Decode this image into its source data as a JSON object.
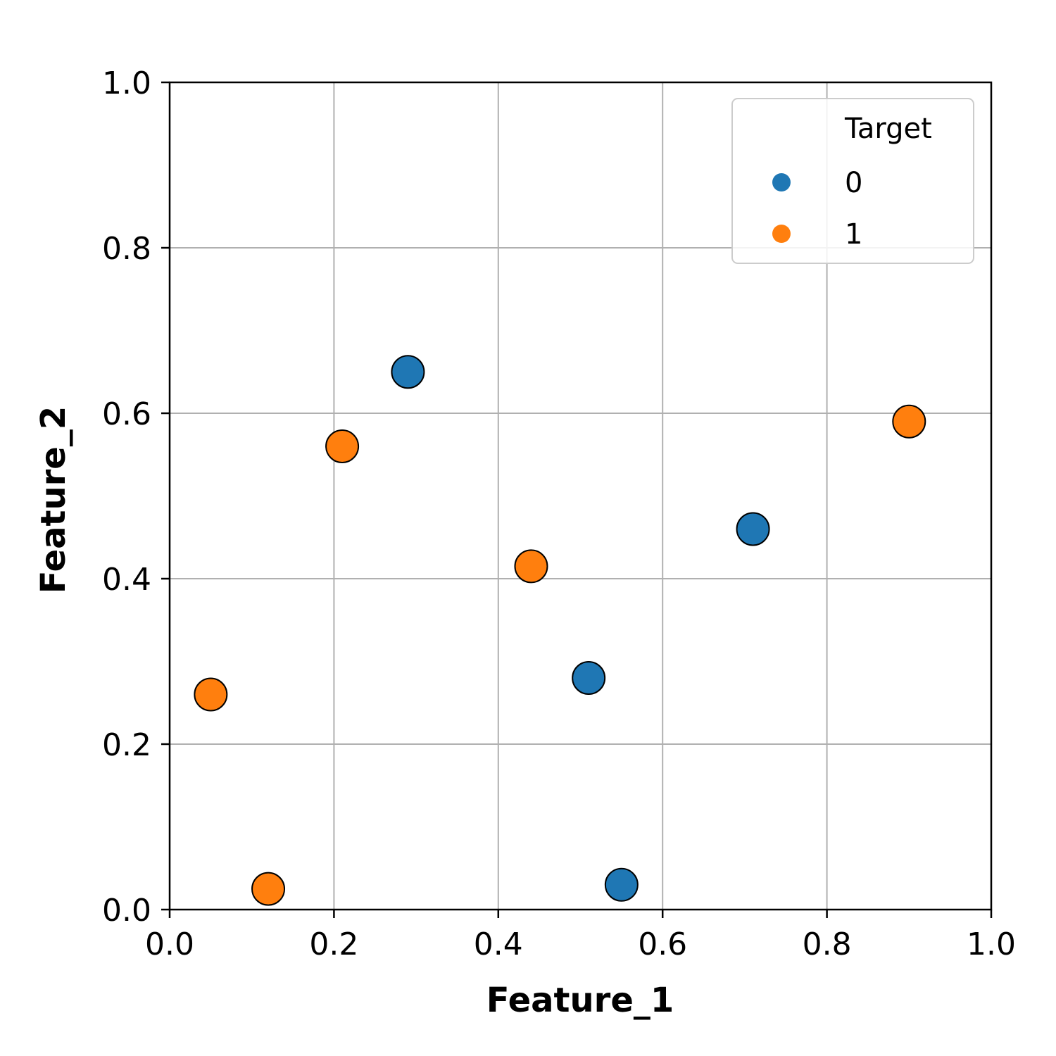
{
  "chart_data": {
    "type": "scatter",
    "xlabel": "Feature_1",
    "ylabel": "Feature_2",
    "xlim": [
      0.0,
      1.0
    ],
    "ylim": [
      0.0,
      1.0
    ],
    "xticks": [
      "0.0",
      "0.2",
      "0.4",
      "0.6",
      "0.8",
      "1.0"
    ],
    "yticks": [
      "0.0",
      "0.2",
      "0.4",
      "0.6",
      "0.8",
      "1.0"
    ],
    "grid": true,
    "legend": {
      "title": "Target",
      "placement": "top-right",
      "entries": [
        {
          "label": "0",
          "color": "#1f77b4"
        },
        {
          "label": "1",
          "color": "#ff7f0e"
        }
      ]
    },
    "series": [
      {
        "name": "0",
        "color": "#1f77b4",
        "points": [
          {
            "x": 0.29,
            "y": 0.65
          },
          {
            "x": 0.51,
            "y": 0.28
          },
          {
            "x": 0.55,
            "y": 0.03
          },
          {
            "x": 0.71,
            "y": 0.46
          }
        ]
      },
      {
        "name": "1",
        "color": "#ff7f0e",
        "points": [
          {
            "x": 0.05,
            "y": 0.26
          },
          {
            "x": 0.12,
            "y": 0.025
          },
          {
            "x": 0.21,
            "y": 0.56
          },
          {
            "x": 0.44,
            "y": 0.415
          },
          {
            "x": 0.9,
            "y": 0.59
          }
        ]
      }
    ]
  }
}
